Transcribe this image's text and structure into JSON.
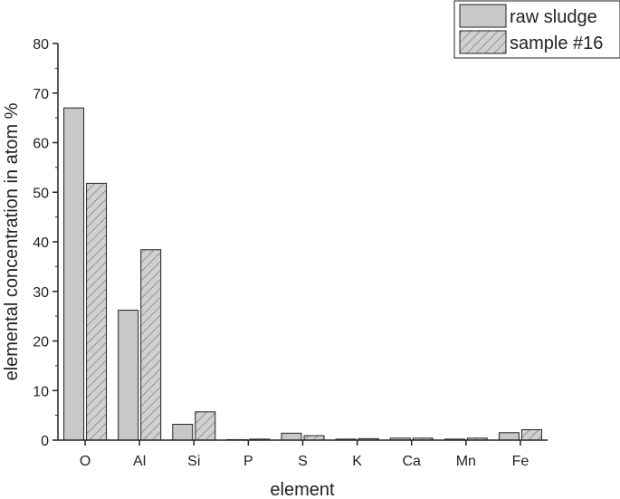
{
  "chart_data": {
    "type": "bar",
    "title": "",
    "xlabel": "element",
    "ylabel": "elemental concentration in atom %",
    "categories": [
      "O",
      "Al",
      "Si",
      "P",
      "S",
      "K",
      "Ca",
      "Mn",
      "Fe"
    ],
    "ylim": [
      0,
      80
    ],
    "yticks": [
      0,
      10,
      20,
      30,
      40,
      50,
      60,
      70,
      80
    ],
    "grid": false,
    "legend_position": "top-right",
    "series": [
      {
        "name": "raw sludge",
        "style": "solid",
        "color": "#c8c8c8",
        "values": [
          67.0,
          26.2,
          3.2,
          0.1,
          1.4,
          0.2,
          0.4,
          0.2,
          1.5
        ]
      },
      {
        "name": "sample #16",
        "style": "hatched",
        "color": "#cfcfcf",
        "values": [
          51.8,
          38.4,
          5.7,
          0.2,
          0.9,
          0.3,
          0.4,
          0.4,
          2.1
        ]
      }
    ]
  }
}
